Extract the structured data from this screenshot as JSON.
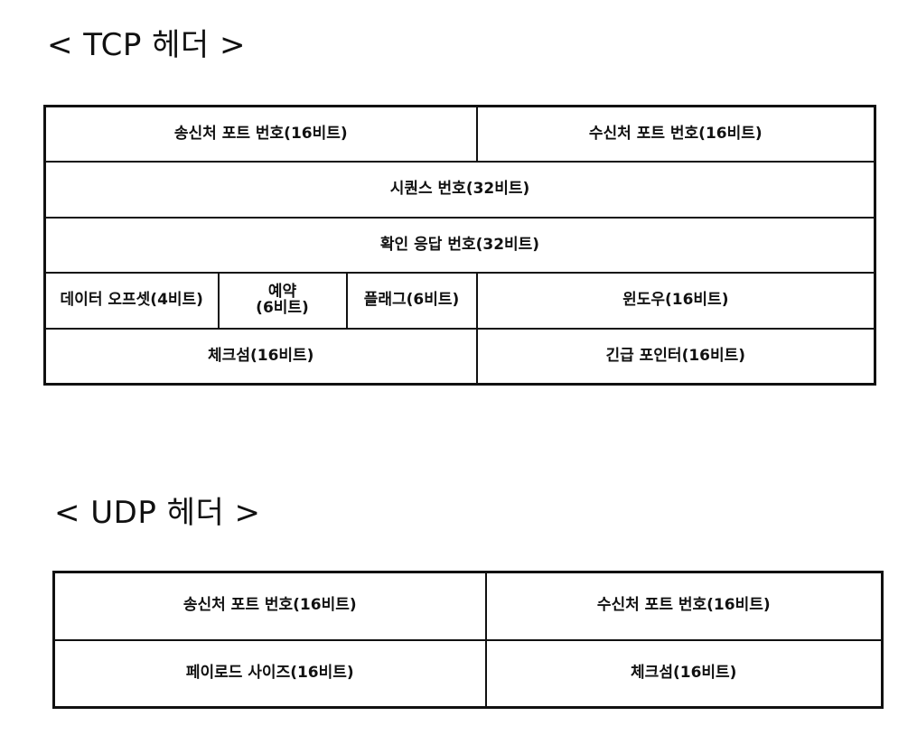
{
  "tcp": {
    "title": "< TCP 헤더 >",
    "rows": [
      [
        "송신처 포트 번호(16비트)",
        "수신처 포트 번호(16비트)"
      ],
      [
        "시퀀스 번호(32비트)"
      ],
      [
        "확인 응답 번호(32비트)"
      ],
      [
        "데이터 오프셋(4비트)",
        "예약\n(6비트)",
        "플래그(6비트)",
        "윈도우(16비트)"
      ],
      [
        "체크섬(16비트)",
        "긴급 포인터(16비트)"
      ]
    ]
  },
  "udp": {
    "title": "< UDP 헤더 >",
    "rows": [
      [
        "송신처 포트 번호(16비트)",
        "수신처 포트 번호(16비트)"
      ],
      [
        "페이로드 사이즈(16비트)",
        "체크섬(16비트)"
      ]
    ]
  }
}
